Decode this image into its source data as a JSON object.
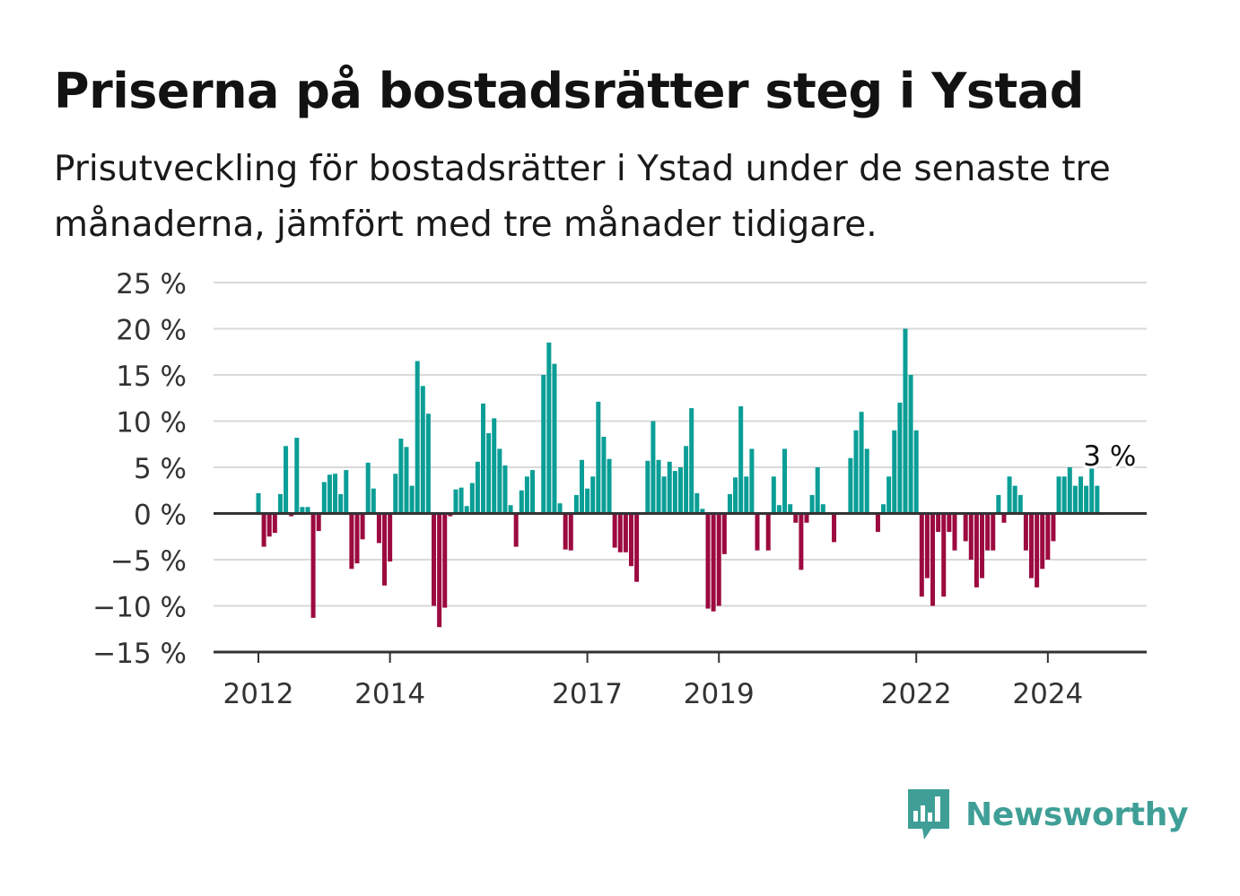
{
  "title": "Priserna på bostadsrätter steg i Ystad",
  "subtitle": "Prisutveckling för bostadsrätter i Ystad under de senaste tre månaderna, jämfört med tre månader tidigare.",
  "brand": {
    "name": "Newsworthy",
    "color": "#3f9f97",
    "icon": "newsworthy-logo-icon"
  },
  "colors": {
    "positive": "#0a9e96",
    "negative": "#9c0a3f",
    "grid": "#d9d9d9",
    "axis": "#333333"
  },
  "chart_data": {
    "type": "bar",
    "ylim": [
      -15,
      25
    ],
    "y_ticks": [
      {
        "value": 25,
        "label": "25 %"
      },
      {
        "value": 20,
        "label": "20 %"
      },
      {
        "value": 15,
        "label": "15 %"
      },
      {
        "value": 10,
        "label": "10 %"
      },
      {
        "value": 5,
        "label": "5 %"
      },
      {
        "value": 0,
        "label": "0 %"
      },
      {
        "value": -5,
        "label": "−5 %"
      },
      {
        "value": -10,
        "label": "−10 %"
      },
      {
        "value": -15,
        "label": "−15 %"
      }
    ],
    "x_ticks": [
      {
        "index": 0,
        "label": "2012"
      },
      {
        "index": 24,
        "label": "2014"
      },
      {
        "index": 60,
        "label": "2017"
      },
      {
        "index": 84,
        "label": "2019"
      },
      {
        "index": 120,
        "label": "2022"
      },
      {
        "index": 144,
        "label": "2024"
      }
    ],
    "values": [
      2.2,
      -3.6,
      -2.5,
      -2.1,
      2.1,
      7.3,
      -0.3,
      8.2,
      0.7,
      0.7,
      -11.3,
      -1.9,
      3.4,
      4.2,
      4.3,
      2.1,
      4.7,
      -6.0,
      -5.4,
      -2.8,
      5.5,
      2.7,
      -3.2,
      -7.8,
      -5.2,
      4.3,
      8.1,
      7.2,
      3.0,
      16.5,
      13.8,
      10.8,
      -10.0,
      -12.3,
      -10.2,
      -0.3,
      2.6,
      2.8,
      0.8,
      3.3,
      5.6,
      11.9,
      8.7,
      10.3,
      7.0,
      5.2,
      0.9,
      -3.6,
      2.5,
      4.0,
      4.7,
      0.1,
      15.0,
      18.5,
      16.2,
      1.1,
      -3.9,
      -4.0,
      2.0,
      5.8,
      2.7,
      4.0,
      12.1,
      8.3,
      5.9,
      -3.7,
      -4.2,
      -4.2,
      -5.7,
      -7.4,
      0.1,
      5.7,
      10.0,
      5.8,
      4.0,
      5.6,
      4.6,
      5.0,
      7.3,
      11.4,
      2.2,
      0.5,
      -10.3,
      -10.6,
      -10.0,
      -4.4,
      2.1,
      3.9,
      11.6,
      4.0,
      7.0,
      -4.0,
      0.0,
      -4.0,
      4.0,
      0.9,
      7.0,
      1.0,
      -1.0,
      -6.1,
      -1.0,
      2.0,
      5.0,
      1.0,
      0.0,
      -3.1,
      0.0,
      0.0,
      6.0,
      9.0,
      11.0,
      7.0,
      0.0,
      -2.0,
      1.0,
      4.0,
      9.0,
      12.0,
      20.0,
      15.0,
      9.0,
      -9.0,
      -7.0,
      -10.0,
      -2.0,
      -9.0,
      -2.0,
      -4.0,
      0.0,
      -3.0,
      -5.0,
      -8.0,
      -7.0,
      -4.0,
      -4.0,
      2.0,
      -1.0,
      4.0,
      3.0,
      2.0,
      -4.0,
      -7.0,
      -8.0,
      -6.0,
      -5.0,
      -3.0,
      4.0,
      4.0,
      5.0,
      3.0,
      4.0,
      3.0,
      5.0,
      3.0
    ],
    "annotation": {
      "index": 153,
      "label": "3 %"
    }
  }
}
